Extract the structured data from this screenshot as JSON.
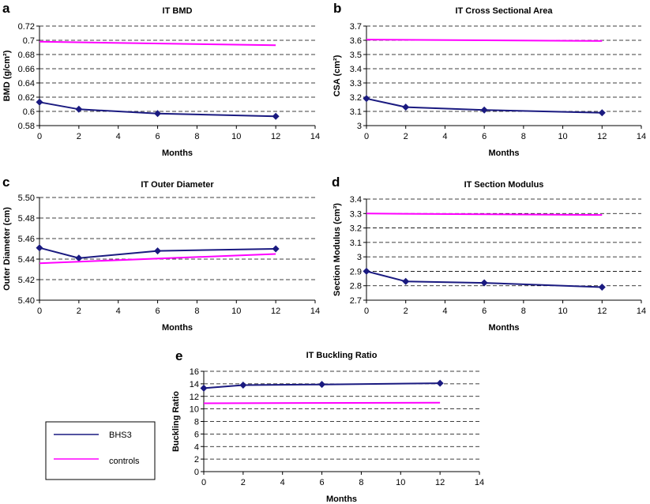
{
  "legend": {
    "entries": [
      {
        "label": "BHS3",
        "color": "#1a1a80"
      },
      {
        "label": "controls",
        "color": "#ff00ff"
      }
    ]
  },
  "chart_data": [
    {
      "id": "a",
      "letter": "a",
      "type": "line",
      "title": "IT BMD",
      "xlabel": "Months",
      "ylabel": "BMD (g/cm²)",
      "xlim": [
        0,
        14
      ],
      "xticks": [
        "0",
        "2",
        "4",
        "6",
        "8",
        "10",
        "12",
        "14"
      ],
      "ylim": [
        0.58,
        0.72
      ],
      "yticks": [
        "0.58",
        "0.6",
        "0.62",
        "0.64",
        "0.66",
        "0.68",
        "0.7",
        "0.72"
      ],
      "series": [
        {
          "name": "BHS3",
          "color": "#1a1a80",
          "markers": true,
          "x": [
            0,
            2,
            6,
            12
          ],
          "y": [
            0.613,
            0.603,
            0.597,
            0.593
          ]
        },
        {
          "name": "controls",
          "color": "#ff00ff",
          "markers": false,
          "x": [
            0,
            12
          ],
          "y": [
            0.698,
            0.693
          ]
        }
      ]
    },
    {
      "id": "b",
      "letter": "b",
      "type": "line",
      "title": "IT Cross Sectional Area",
      "xlabel": "Months",
      "ylabel": "CSA (cm²)",
      "xlim": [
        0,
        14
      ],
      "xticks": [
        "0",
        "2",
        "4",
        "6",
        "8",
        "10",
        "12",
        "14"
      ],
      "ylim": [
        3.0,
        3.7
      ],
      "yticks": [
        "3",
        "3.1",
        "3.2",
        "3.3",
        "3.4",
        "3.5",
        "3.6",
        "3.7"
      ],
      "series": [
        {
          "name": "BHS3",
          "color": "#1a1a80",
          "markers": true,
          "x": [
            0,
            2,
            6,
            12
          ],
          "y": [
            3.19,
            3.13,
            3.11,
            3.09
          ]
        },
        {
          "name": "controls",
          "color": "#ff00ff",
          "markers": false,
          "x": [
            0,
            12
          ],
          "y": [
            3.605,
            3.595
          ]
        }
      ]
    },
    {
      "id": "c",
      "letter": "c",
      "type": "line",
      "title": "IT Outer Diameter",
      "xlabel": "Months",
      "ylabel": "Outer Diameter (cm)",
      "xlim": [
        0,
        14
      ],
      "xticks": [
        "0",
        "2",
        "4",
        "6",
        "8",
        "10",
        "12",
        "14"
      ],
      "ylim": [
        5.4,
        5.5
      ],
      "yticks": [
        "5.40",
        "5.42",
        "5.44",
        "5.46",
        "5.48",
        "5.50"
      ],
      "series": [
        {
          "name": "BHS3",
          "color": "#1a1a80",
          "markers": true,
          "x": [
            0,
            2,
            6,
            12
          ],
          "y": [
            5.451,
            5.441,
            5.448,
            5.45
          ]
        },
        {
          "name": "controls",
          "color": "#ff00ff",
          "markers": false,
          "x": [
            0,
            12
          ],
          "y": [
            5.436,
            5.445
          ]
        }
      ]
    },
    {
      "id": "d",
      "letter": "d",
      "type": "line",
      "title": "IT Section Modulus",
      "xlabel": "Months",
      "ylabel": "Section Modulus (cm³)",
      "xlim": [
        0,
        14
      ],
      "xticks": [
        "0",
        "2",
        "4",
        "6",
        "8",
        "10",
        "12",
        "14"
      ],
      "ylim": [
        2.7,
        3.4
      ],
      "yticks": [
        "2.7",
        "2.8",
        "2.9",
        "3",
        "3.1",
        "3.2",
        "3.3",
        "3.4"
      ],
      "series": [
        {
          "name": "BHS3",
          "color": "#1a1a80",
          "markers": true,
          "x": [
            0,
            2,
            6,
            12
          ],
          "y": [
            2.9,
            2.83,
            2.82,
            2.79
          ]
        },
        {
          "name": "controls",
          "color": "#ff00ff",
          "markers": false,
          "x": [
            0,
            12
          ],
          "y": [
            3.3,
            3.29
          ]
        }
      ]
    },
    {
      "id": "e",
      "letter": "e",
      "type": "line",
      "title": "IT Buckling Ratio",
      "xlabel": "Months",
      "ylabel": "Buckling Ratio",
      "xlim": [
        0,
        14
      ],
      "xticks": [
        "0",
        "2",
        "4",
        "6",
        "8",
        "10",
        "12",
        "14"
      ],
      "ylim": [
        0,
        16
      ],
      "yticks": [
        "0",
        "2",
        "4",
        "6",
        "8",
        "10",
        "12",
        "14",
        "16"
      ],
      "series": [
        {
          "name": "BHS3",
          "color": "#1a1a80",
          "markers": true,
          "x": [
            0,
            2,
            6,
            12
          ],
          "y": [
            13.3,
            13.8,
            13.9,
            14.1
          ]
        },
        {
          "name": "controls",
          "color": "#ff00ff",
          "markers": false,
          "x": [
            0,
            12
          ],
          "y": [
            10.9,
            11.0
          ]
        }
      ]
    }
  ]
}
